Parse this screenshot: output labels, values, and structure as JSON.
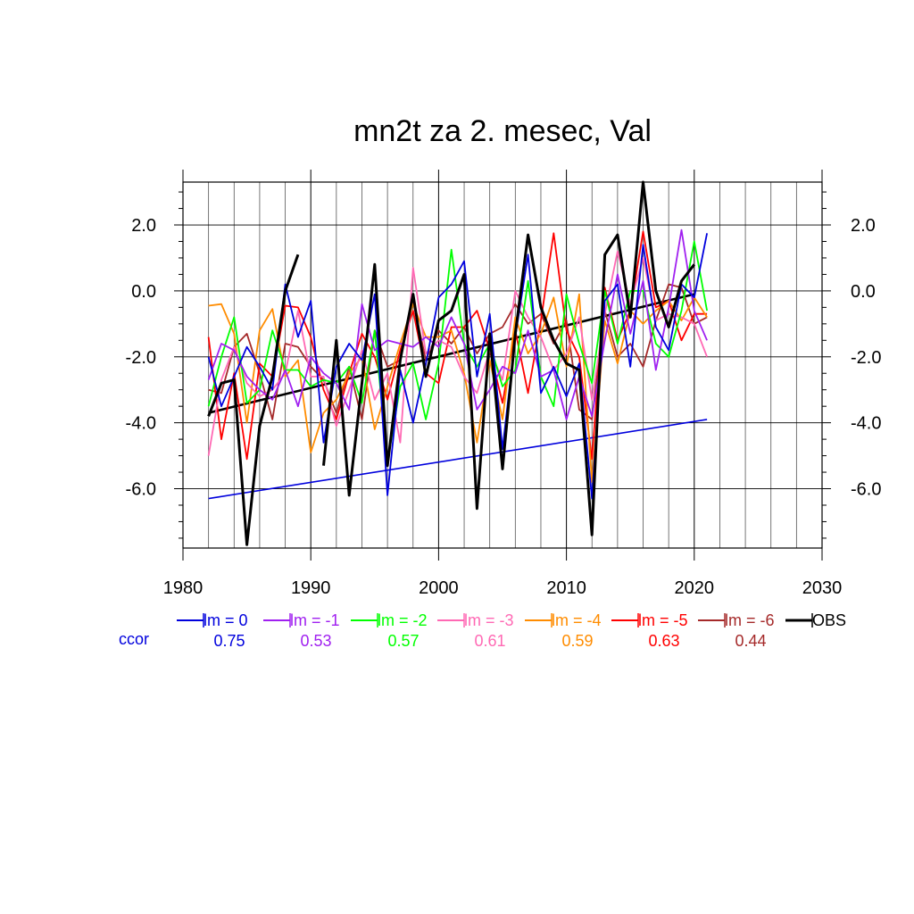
{
  "chart_data": {
    "type": "line",
    "title": "mn2t za 2. mesec, Val",
    "xlabel": "",
    "ylabel": "",
    "xlim": [
      1980,
      2030
    ],
    "ylim": [
      -7.8,
      3.3
    ],
    "x_ticks": [
      1980,
      1990,
      2000,
      2010,
      2020,
      2030
    ],
    "x_tick_labels": [
      "1980",
      "1990",
      "2000",
      "2010",
      "2020",
      "2030"
    ],
    "y_ticks": [
      2.0,
      0.0,
      -2.0,
      -4.0,
      -6.0
    ],
    "y_tick_labels": [
      "2.0",
      "0.0",
      "-2.0",
      "-4.0",
      "-6.0"
    ],
    "grid": true,
    "legend_position": "bottom",
    "ccor_label": "ccor",
    "x": [
      1982,
      1983,
      1984,
      1985,
      1986,
      1987,
      1988,
      1989,
      1990,
      1991,
      1992,
      1993,
      1994,
      1995,
      1996,
      1997,
      1998,
      1999,
      2000,
      2001,
      2002,
      2003,
      2004,
      2005,
      2006,
      2007,
      2008,
      2009,
      2010,
      2011,
      2012,
      2013,
      2014,
      2015,
      2016,
      2017,
      2018,
      2019,
      2020,
      2021
    ],
    "series": [
      {
        "name": "lm = 0",
        "color": "#0000dd",
        "ccor": "0.75",
        "values": [
          -2.0,
          -3.5,
          -2.6,
          -1.7,
          -2.3,
          -3.0,
          0.2,
          -1.4,
          -0.3,
          -4.6,
          -2.3,
          -1.6,
          -2.1,
          -0.1,
          -6.2,
          -2.4,
          -4.0,
          -2.2,
          -0.2,
          0.2,
          0.9,
          -2.6,
          -0.7,
          -4.8,
          -1.4,
          1.1,
          -3.1,
          -2.3,
          -3.2,
          -2.2,
          -6.3,
          -0.3,
          0.2,
          -2.3,
          1.4,
          -1.1,
          -1.8,
          0.2,
          -0.2,
          1.75
        ]
      },
      {
        "name": "lm = -1",
        "color": "#a020f0",
        "ccor": "0.53",
        "values": [
          -2.7,
          -1.6,
          -1.8,
          -2.6,
          -3.0,
          -3.3,
          -2.4,
          -3.5,
          -2.0,
          -2.5,
          -2.8,
          -3.6,
          -0.4,
          -1.8,
          -1.5,
          -1.6,
          -1.7,
          -1.4,
          -1.7,
          -0.8,
          -1.6,
          -3.6,
          -3.0,
          -2.3,
          -2.5,
          -1.2,
          -2.6,
          -2.4,
          -3.9,
          -2.6,
          -3.8,
          -1.5,
          0.5,
          -1.3,
          0.3,
          -2.4,
          -0.5,
          1.85,
          -0.6,
          -1.5
        ]
      },
      {
        "name": "lm = -2",
        "color": "#00ff00",
        "ccor": "0.57",
        "values": [
          -3.5,
          -2.0,
          -0.8,
          -3.4,
          -3.0,
          -1.2,
          -2.4,
          -2.4,
          -2.9,
          -2.7,
          -2.8,
          -2.3,
          -3.4,
          -1.2,
          -5.2,
          -2.9,
          -2.2,
          -3.9,
          -2.2,
          1.25,
          -1.6,
          -2.3,
          -1.6,
          -2.9,
          -2.4,
          0.3,
          -2.6,
          -3.5,
          -0.1,
          -1.6,
          -2.8,
          0.0,
          -1.6,
          0.0,
          0.0,
          -1.6,
          -2.0,
          -0.6,
          1.5,
          -0.6
        ]
      },
      {
        "name": "lm = -3",
        "color": "#ff69b4",
        "ccor": "0.61",
        "values": [
          -5.0,
          -2.7,
          -1.7,
          -2.8,
          -3.2,
          -3.0,
          -2.5,
          -0.6,
          -2.6,
          -2.6,
          -4.1,
          -3.0,
          -1.8,
          -3.3,
          -2.5,
          -4.6,
          0.7,
          -1.9,
          -1.5,
          -1.7,
          -2.6,
          -3.1,
          -1.8,
          -2.7,
          0.0,
          -0.8,
          -1.4,
          -2.4,
          -1.9,
          -0.8,
          -3.3,
          -0.7,
          1.2,
          -0.4,
          1.0,
          -0.9,
          -0.7,
          -0.8,
          -1.0,
          -2.0
        ]
      },
      {
        "name": "lm = -4",
        "color": "#ff8c00",
        "ccor": "0.59",
        "values": [
          -0.45,
          -0.4,
          -1.3,
          -4.0,
          -1.2,
          -0.55,
          -2.6,
          -2.1,
          -4.9,
          -3.7,
          -3.3,
          -2.5,
          -2.0,
          -4.2,
          -2.9,
          -1.6,
          -0.4,
          -1.4,
          -1.4,
          -1.2,
          -2.5,
          -4.6,
          -2.1,
          -3.9,
          -0.8,
          -1.9,
          -1.3,
          -0.2,
          -2.3,
          -0.1,
          -5.8,
          -0.9,
          -2.2,
          -0.6,
          -1.0,
          -0.6,
          -0.3,
          -0.9,
          -0.2,
          -0.8
        ]
      },
      {
        "name": "lm = -5",
        "color": "#ff0000",
        "ccor": "0.63",
        "values": [
          -1.4,
          -4.5,
          -2.5,
          -5.1,
          -2.2,
          -2.6,
          -0.45,
          -0.5,
          -1.4,
          -3.0,
          -3.9,
          -2.5,
          -1.3,
          -2.0,
          -3.3,
          -1.8,
          -0.6,
          -2.5,
          -2.8,
          -1.1,
          -1.1,
          -0.6,
          -1.8,
          -3.4,
          -1.2,
          -3.1,
          -0.9,
          1.75,
          -1.2,
          -2.0,
          -5.1,
          0.1,
          -1.5,
          -0.6,
          1.8,
          -0.5,
          -0.3,
          -1.5,
          -0.7,
          -0.7
        ]
      },
      {
        "name": "lm = -6",
        "color": "#a52a2a",
        "ccor": "0.44",
        "values": [
          -3.0,
          -3.1,
          -1.7,
          -1.3,
          -2.5,
          -3.9,
          -1.6,
          -1.7,
          -2.3,
          -2.7,
          -3.7,
          -2.3,
          -3.9,
          -1.2,
          -2.3,
          -2.1,
          -0.3,
          -2.1,
          -1.2,
          -1.6,
          -1.1,
          -1.9,
          -1.3,
          -1.1,
          -0.4,
          -1.0,
          -0.7,
          -1.6,
          -0.9,
          -3.6,
          -3.9,
          -0.6,
          -2.0,
          -1.6,
          -2.3,
          -0.9,
          0.2,
          0.1,
          -1.0,
          -0.8
        ]
      },
      {
        "name": "OBS",
        "color": "#000000",
        "ccor": "",
        "values": [
          -3.8,
          -2.8,
          -2.7,
          -7.7,
          -4.1,
          -2.6,
          0.0,
          1.1,
          null,
          -5.3,
          -1.5,
          -6.2,
          -2.8,
          0.8,
          -5.3,
          -2.1,
          -0.1,
          -2.6,
          -0.9,
          -0.6,
          0.5,
          -6.6,
          -1.3,
          -5.4,
          -1.3,
          1.7,
          -0.5,
          -1.5,
          -2.2,
          -2.4,
          -7.4,
          1.1,
          1.7,
          -0.8,
          3.3,
          0.0,
          -1.1,
          0.3,
          0.8,
          null
        ]
      }
    ],
    "trend_lines": [
      {
        "series": "OBS",
        "color": "#000000",
        "x": [
          1982,
          2020
        ],
        "y": [
          -3.7,
          -0.1
        ]
      },
      {
        "series": "lm = 0",
        "color": "#0000dd",
        "x": [
          1982,
          2021
        ],
        "y": [
          -6.3,
          -3.9
        ]
      }
    ]
  }
}
